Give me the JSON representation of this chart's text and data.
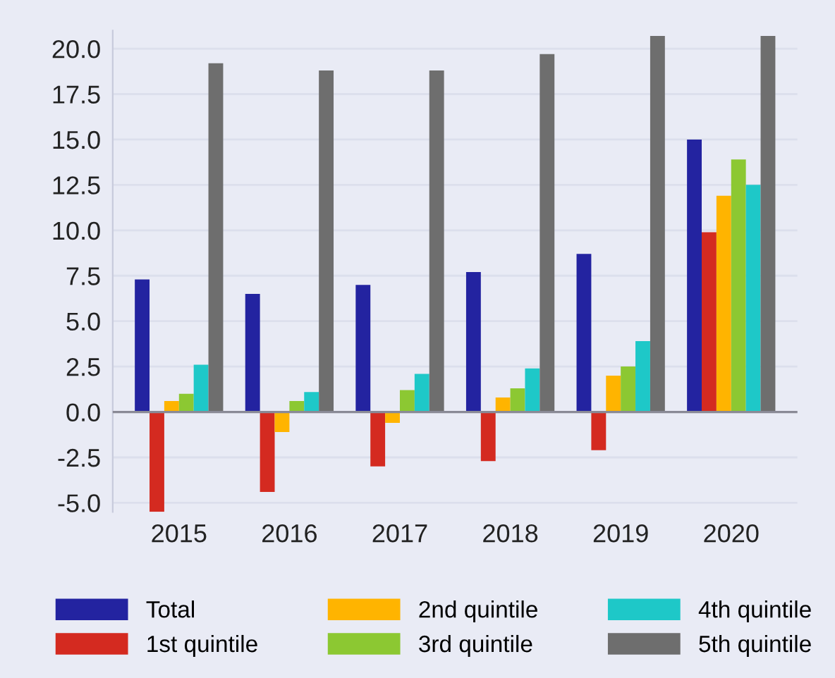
{
  "chart_data": {
    "type": "bar",
    "categories": [
      "2015",
      "2016",
      "2017",
      "2018",
      "2019",
      "2020"
    ],
    "series": [
      {
        "name": "Total",
        "color": "#2323a0",
        "values": [
          7.3,
          6.5,
          7.0,
          7.7,
          8.7,
          15.0
        ]
      },
      {
        "name": "1st quintile",
        "color": "#d42a20",
        "values": [
          -5.5,
          -4.4,
          -3.0,
          -2.7,
          -2.1,
          9.9
        ]
      },
      {
        "name": "2nd quintile",
        "color": "#ffb400",
        "values": [
          0.6,
          -1.1,
          -0.6,
          0.8,
          2.0,
          11.9
        ]
      },
      {
        "name": "3rd quintile",
        "color": "#8cc832",
        "values": [
          1.0,
          0.6,
          1.2,
          1.3,
          2.5,
          13.9
        ]
      },
      {
        "name": "4th quintile",
        "color": "#1ec8c8",
        "values": [
          2.6,
          1.1,
          2.1,
          2.4,
          3.9,
          12.5
        ]
      },
      {
        "name": "5th quintile",
        "color": "#6e6e6e",
        "values": [
          19.2,
          18.8,
          18.8,
          19.7,
          20.7,
          20.7
        ]
      }
    ],
    "ylim": [
      -5.5,
      21
    ],
    "yticks": [
      {
        "value": -5,
        "label": "-5.0"
      },
      {
        "value": -2.5,
        "label": "-2.5"
      },
      {
        "value": 0,
        "label": "0.0"
      },
      {
        "value": 2.5,
        "label": "2.5"
      },
      {
        "value": 5,
        "label": "5.0"
      },
      {
        "value": 7.5,
        "label": "7.5"
      },
      {
        "value": 10,
        "label": "10.0"
      },
      {
        "value": 12.5,
        "label": "12.5"
      },
      {
        "value": 15,
        "label": "15.0"
      },
      {
        "value": 17.5,
        "label": "17.5"
      },
      {
        "value": 20,
        "label": "20.0"
      }
    ],
    "ref_lines": [
      {
        "axis": "y",
        "value": 0,
        "label": null,
        "color": "#8a8a96"
      }
    ],
    "grid": "y",
    "legend": "bottom"
  }
}
